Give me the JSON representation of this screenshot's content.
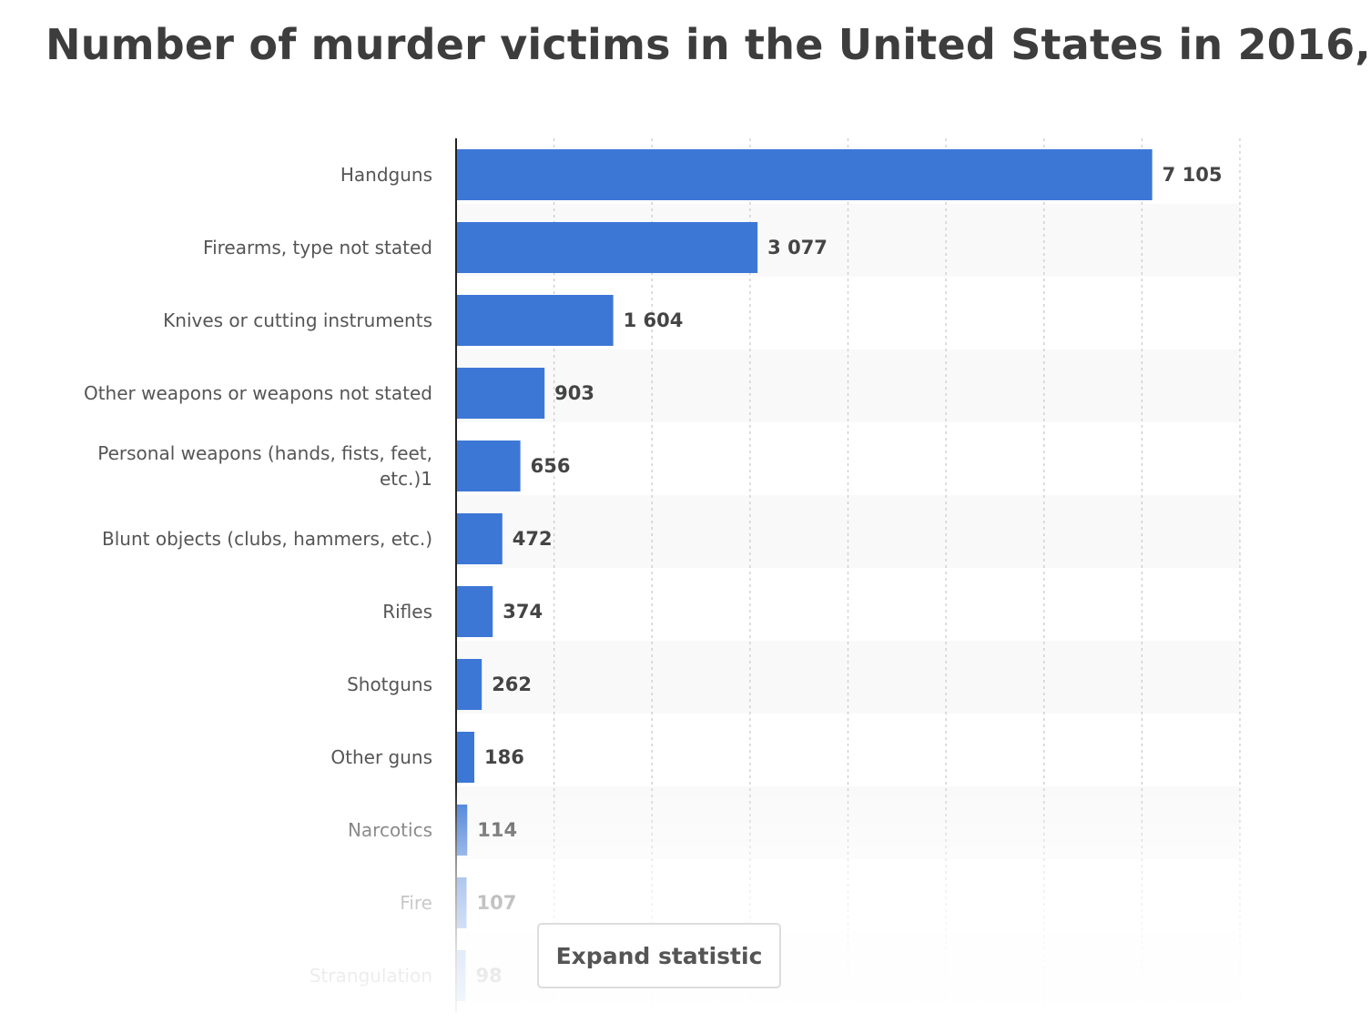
{
  "chart_data": {
    "type": "bar",
    "orientation": "horizontal",
    "title": "Number of murder victims in the United States in 2016,",
    "categories": [
      "Handguns",
      "Firearms, type not stated",
      "Knives or cutting instruments",
      "Other weapons or weapons not stated",
      "Personal weapons (hands, fists, feet, etc.)1",
      "Blunt objects (clubs, hammers, etc.)",
      "Rifles",
      "Shotguns",
      "Other guns",
      "Narcotics",
      "Fire",
      "Strangulation"
    ],
    "values": [
      7105,
      3077,
      1604,
      903,
      656,
      472,
      374,
      262,
      186,
      114,
      107,
      98
    ],
    "value_labels": [
      "7 105",
      "3 077",
      "1 604",
      "903",
      "656",
      "472",
      "374",
      "262",
      "186",
      "114",
      "107",
      "98"
    ],
    "xlim": [
      0,
      8000
    ],
    "grid": true,
    "bar_color": "#3d77d6",
    "xlabel": "",
    "ylabel": ""
  },
  "ui": {
    "expand_label": "Expand statistic"
  }
}
